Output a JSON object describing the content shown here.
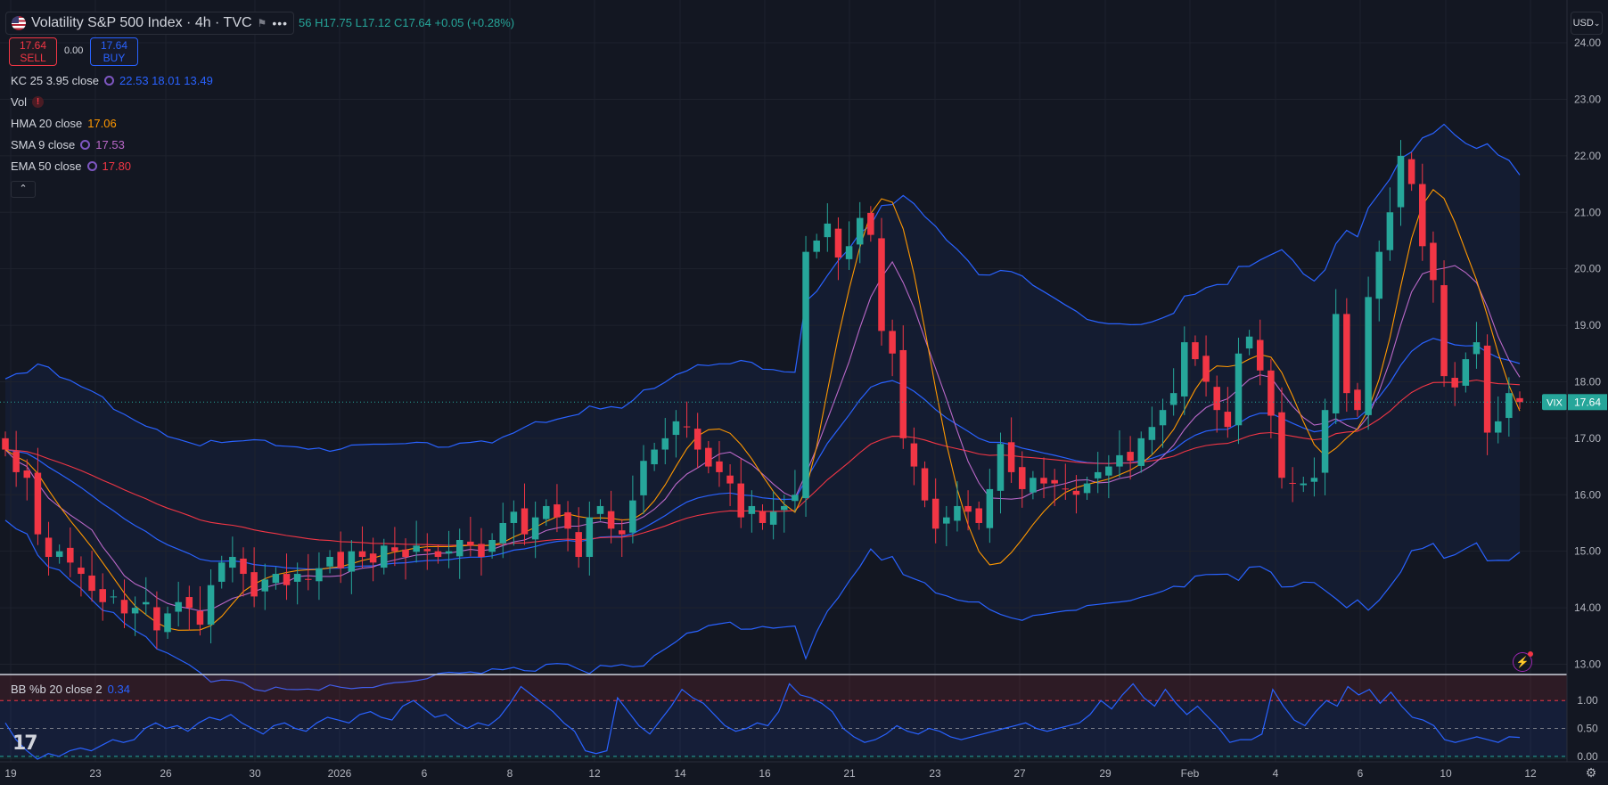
{
  "header": {
    "title": "Volatility S&P 500 Index · 4h · TVC",
    "ohlc_text": "56 H17.75 L17.12 C17.64 +0.05 (+0.28%)",
    "more_icon": "more-dots-icon",
    "flag_icon": "us-flag-icon"
  },
  "trade": {
    "sell_price": "17.64",
    "sell_label": "SELL",
    "spread": "0.00",
    "buy_price": "17.64",
    "buy_label": "BUY"
  },
  "indicators": [
    {
      "name": "KC 25 3.95 close",
      "values": "22.53  18.01  13.49",
      "color": "#2962ff"
    },
    {
      "name": "Vol",
      "values": "",
      "color": "#f23645"
    },
    {
      "name": "HMA 20 close",
      "values": "17.06",
      "color": "#ff9800"
    },
    {
      "name": "SMA 9 close",
      "values": "17.53",
      "color": "#ba68c8"
    },
    {
      "name": "EMA 50 close",
      "values": "17.80",
      "color": "#f23645"
    }
  ],
  "currency_button": "USD",
  "lower_pane": {
    "name": "BB %b 20 close 2",
    "value": "0.34"
  },
  "colors": {
    "up": "#26a69a",
    "down": "#f23645",
    "kc": "#2962ff",
    "hma": "#ff9800",
    "sma": "#ba68c8",
    "ema": "#f23645"
  },
  "chart_data": [
    {
      "type": "candlestick",
      "symbol_tag": "VIX",
      "last_price": "17.64",
      "ylim": [
        12.85,
        24.6
      ],
      "y_ticks": [
        "13.00",
        "14.00",
        "15.00",
        "16.00",
        "17.00",
        "18.00",
        "19.00",
        "20.00",
        "21.00",
        "22.00",
        "23.00",
        "24.00"
      ],
      "x_tick_labels": [
        "19",
        "23",
        "26",
        "30",
        "2026",
        "6",
        "8",
        "12",
        "14",
        "16",
        "21",
        "23",
        "27",
        "29",
        "Feb",
        "4",
        "6",
        "10",
        "12"
      ],
      "bars": 140,
      "closes": [
        16.8,
        16.4,
        16.3,
        15.3,
        14.9,
        15.0,
        14.8,
        14.6,
        14.3,
        14.1,
        14.2,
        13.9,
        14.0,
        14.1,
        13.6,
        13.9,
        14.1,
        14.0,
        13.7,
        14.4,
        14.8,
        14.9,
        14.6,
        14.2,
        14.5,
        14.6,
        14.4,
        14.6,
        14.5,
        14.7,
        14.9,
        14.7,
        15.0,
        14.9,
        14.8,
        15.1,
        15.0,
        14.9,
        15.1,
        15.0,
        14.9,
        15.0,
        15.2,
        15.1,
        14.9,
        15.2,
        15.5,
        15.7,
        15.3,
        15.6,
        15.8,
        15.6,
        15.4,
        14.9,
        15.6,
        15.8,
        15.4,
        15.3,
        15.9,
        16.6,
        16.8,
        17.0,
        17.3,
        17.2,
        16.8,
        16.5,
        16.4,
        16.2,
        15.6,
        15.8,
        15.5,
        15.7,
        15.8,
        16.0,
        20.3,
        20.5,
        20.8,
        20.2,
        20.4,
        20.9,
        20.6,
        18.9,
        18.5,
        17.0,
        16.5,
        15.9,
        15.4,
        15.6,
        15.8,
        15.7,
        15.5,
        16.1,
        16.9,
        16.4,
        16.1,
        16.3,
        16.2,
        16.2,
        16.1,
        16.0,
        16.2,
        16.4,
        16.5,
        16.7,
        16.6,
        17.0,
        17.2,
        17.5,
        17.8,
        18.7,
        18.4,
        18.0,
        17.5,
        17.2,
        18.5,
        18.8,
        18.2,
        17.4,
        16.3,
        16.2,
        16.2,
        16.3,
        17.5,
        19.2,
        17.8,
        17.5,
        19.5,
        20.3,
        21.0,
        22.0,
        21.5,
        20.4,
        19.8,
        18.1,
        17.9,
        18.4,
        18.7,
        17.1,
        17.3,
        17.8,
        17.64
      ],
      "keltner": {
        "upper_last": 22.53,
        "middle_last": 18.01,
        "lower_last": 13.49
      },
      "hma_last": 17.06,
      "sma_last": 17.53,
      "ema_last": 17.8
    },
    {
      "type": "line",
      "name": "BB %b 20 close 2",
      "ylim": [
        -0.05,
        1.45
      ],
      "y_ticks": [
        "0.00",
        "0.50",
        "1.00"
      ],
      "band": [
        0,
        1
      ],
      "values": [
        0.6,
        0.3,
        0.1,
        -0.05,
        0.05,
        0.0,
        0.1,
        0.15,
        0.1,
        0.2,
        0.3,
        0.25,
        0.3,
        0.5,
        0.6,
        0.5,
        0.55,
        0.45,
        0.6,
        0.7,
        0.65,
        0.75,
        0.6,
        0.5,
        0.4,
        0.55,
        0.6,
        0.5,
        0.45,
        0.6,
        0.7,
        0.65,
        0.6,
        0.75,
        0.8,
        0.7,
        0.65,
        0.9,
        1.0,
        0.85,
        0.7,
        0.75,
        0.6,
        0.5,
        0.6,
        0.55,
        0.7,
        0.95,
        1.25,
        1.1,
        0.95,
        0.8,
        0.6,
        0.45,
        0.1,
        0.05,
        0.1,
        1.05,
        0.8,
        0.55,
        0.4,
        0.65,
        0.9,
        1.2,
        1.05,
        0.95,
        0.75,
        0.55,
        0.45,
        0.5,
        0.6,
        0.55,
        0.8,
        1.3,
        1.1,
        1.05,
        0.95,
        0.8,
        0.5,
        0.35,
        0.25,
        0.3,
        0.4,
        0.55,
        0.45,
        0.4,
        0.5,
        0.45,
        0.35,
        0.3,
        0.35,
        0.4,
        0.45,
        0.5,
        0.55,
        0.6,
        0.5,
        0.45,
        0.5,
        0.55,
        0.6,
        0.75,
        1.0,
        0.85,
        1.1,
        1.3,
        1.05,
        0.9,
        1.2,
        0.95,
        0.75,
        0.9,
        0.7,
        0.5,
        0.25,
        0.3,
        0.3,
        0.4,
        1.2,
        0.9,
        0.65,
        0.55,
        0.8,
        1.0,
        0.9,
        1.25,
        1.1,
        1.2,
        0.95,
        1.15,
        0.9,
        0.7,
        0.65,
        0.55,
        0.3,
        0.25,
        0.3,
        0.35,
        0.3,
        0.25,
        0.35,
        0.34
      ]
    }
  ]
}
